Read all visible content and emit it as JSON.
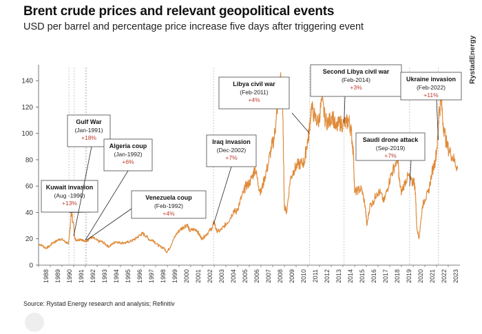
{
  "header": {
    "title": "Brent crude prices and relevant geopolitical events",
    "subtitle": "USD per barrel and percentage price increase five days after triggering event",
    "brand": "RystadEnergy"
  },
  "footer": {
    "source": "Source: Rystad Energy research and analysis; Refinitiv"
  },
  "colors": {
    "line": "#e08b3a",
    "pct": "#c0392b",
    "axis": "#555555",
    "box_border": "#444444"
  },
  "chart_data": {
    "type": "line",
    "series": [
      {
        "x": [
          1988.0,
          1988.3,
          1988.6,
          1988.9,
          1989.2,
          1989.5,
          1989.8,
          1990.1,
          1990.4,
          1990.55,
          1990.7,
          1990.8,
          1991.0,
          1991.1,
          1991.3,
          1991.6,
          1991.9,
          1992.2,
          1992.5,
          1992.8,
          1993.1,
          1993.4,
          1993.7,
          1994.0,
          1994.3,
          1994.6,
          1994.9,
          1995.2,
          1995.5,
          1995.8,
          1996.1,
          1996.4,
          1996.7,
          1996.9,
          1997.2,
          1997.5,
          1997.8,
          1998.1,
          1998.4,
          1998.7,
          1998.95,
          1999.2,
          1999.5,
          1999.8,
          2000.1,
          2000.4,
          2000.7,
          2000.9,
          2001.2,
          2001.5,
          2001.8,
          2001.95,
          2002.2,
          2002.5,
          2002.8,
          2003.0,
          2003.2,
          2003.5,
          2003.8,
          2004.1,
          2004.4,
          2004.7,
          2004.9,
          2005.2,
          2005.5,
          2005.7,
          2006.0,
          2006.3,
          2006.5,
          2006.8,
          2007.0,
          2007.3,
          2007.6,
          2007.9,
          2008.1,
          2008.3,
          2008.5,
          2008.7,
          2008.85,
          2009.0,
          2009.2,
          2009.5,
          2009.8,
          2010.1,
          2010.4,
          2010.7,
          2010.9,
          2011.1,
          2011.3,
          2011.6,
          2011.9,
          2012.2,
          2012.5,
          2012.8,
          2013.1,
          2013.4,
          2013.7,
          2014.0,
          2014.3,
          2014.5,
          2014.7,
          2014.9,
          2015.0,
          2015.3,
          2015.6,
          2015.9,
          2016.05,
          2016.3,
          2016.6,
          2016.9,
          2017.2,
          2017.5,
          2017.8,
          2018.1,
          2018.4,
          2018.7,
          2018.8,
          2019.0,
          2019.3,
          2019.6,
          2019.9,
          2020.05,
          2020.2,
          2020.3,
          2020.5,
          2020.8,
          2021.0,
          2021.3,
          2021.6,
          2021.9,
          2022.1,
          2022.2,
          2022.4,
          2022.6,
          2022.9,
          2023.2,
          2023.5,
          2023.8
        ],
        "y": [
          16,
          15,
          13,
          14,
          17,
          18,
          20,
          19,
          17,
          16,
          28,
          41,
          30,
          20,
          19,
          20,
          18,
          19,
          21,
          20,
          18,
          18,
          16,
          14,
          16,
          18,
          17,
          17,
          17,
          18,
          19,
          21,
          23,
          24,
          22,
          19,
          19,
          16,
          14,
          13,
          10,
          13,
          19,
          24,
          27,
          29,
          31,
          26,
          27,
          27,
          22,
          20,
          22,
          25,
          28,
          33,
          26,
          26,
          29,
          32,
          36,
          42,
          40,
          48,
          55,
          60,
          62,
          68,
          74,
          60,
          55,
          66,
          76,
          90,
          95,
          110,
          130,
          140,
          120,
          45,
          40,
          65,
          72,
          76,
          77,
          78,
          90,
          100,
          120,
          112,
          108,
          125,
          110,
          108,
          115,
          103,
          108,
          107,
          108,
          110,
          102,
          85,
          55,
          57,
          58,
          45,
          30,
          45,
          48,
          55,
          55,
          48,
          58,
          68,
          75,
          82,
          65,
          55,
          63,
          68,
          62,
          65,
          55,
          30,
          20,
          45,
          50,
          55,
          70,
          80,
          95,
          115,
          125,
          105,
          90,
          85,
          80,
          73
        ]
      }
    ],
    "x_ticks": [
      "1988",
      "1989",
      "1990",
      "1991",
      "1992",
      "1993",
      "1994",
      "1995",
      "1996",
      "1997",
      "1998",
      "1999",
      "2000",
      "2001",
      "2002",
      "2003",
      "2004",
      "2005",
      "2006",
      "2007",
      "2008",
      "2009",
      "2010",
      "2011",
      "2012",
      "2013",
      "2014",
      "2015",
      "2016",
      "2017",
      "2018",
      "2019",
      "2020",
      "2021",
      "2022",
      "2023"
    ],
    "y_ticks": [
      0,
      20,
      40,
      60,
      80,
      100,
      120,
      140
    ],
    "xlim": [
      1988,
      2024
    ],
    "ylim": [
      0,
      150
    ],
    "event_lines": [
      1990.6,
      1991.05,
      1992.0,
      1992.1,
      2002.95,
      2011.15,
      2014.1,
      2019.7,
      2022.15
    ],
    "annotations": [
      {
        "title": "Kuwait invasion",
        "date": "(Aug -1990)",
        "pct": "+13%",
        "point_x": 1990.6,
        "point_y": 40
      },
      {
        "title": "Gulf War",
        "date": "(Jan-1991)",
        "pct": "+18%",
        "point_x": 1991.0,
        "point_y": 22
      },
      {
        "title": "Algeria coup",
        "date": "(Jan-1992)",
        "pct": "+6%",
        "point_x": 1992.0,
        "point_y": 19
      },
      {
        "title": "Venezuela coup",
        "date": "(Feb-1992)",
        "pct": "+4%",
        "point_x": 1992.1,
        "point_y": 19
      },
      {
        "title": "Iraq invasion",
        "date": "(Dec-2002)",
        "pct": "+7%",
        "point_x": 2002.95,
        "point_y": 31
      },
      {
        "title": "Libya civil war",
        "date": "(Feb-2011)",
        "pct": "+4%",
        "point_x": 2011.15,
        "point_y": 100
      },
      {
        "title": "Second Libya civil war",
        "date": "(Feb-2014)",
        "pct": "+3%",
        "point_x": 2014.1,
        "point_y": 108
      },
      {
        "title": "Saudi drone attack",
        "date": "(Sep-2019)",
        "pct": "+7%",
        "point_x": 2019.7,
        "point_y": 60
      },
      {
        "title": "Ukraine invasion",
        "date": "(Feb-2022)",
        "pct": "+11%",
        "point_x": 2022.15,
        "point_y": 95
      }
    ]
  }
}
